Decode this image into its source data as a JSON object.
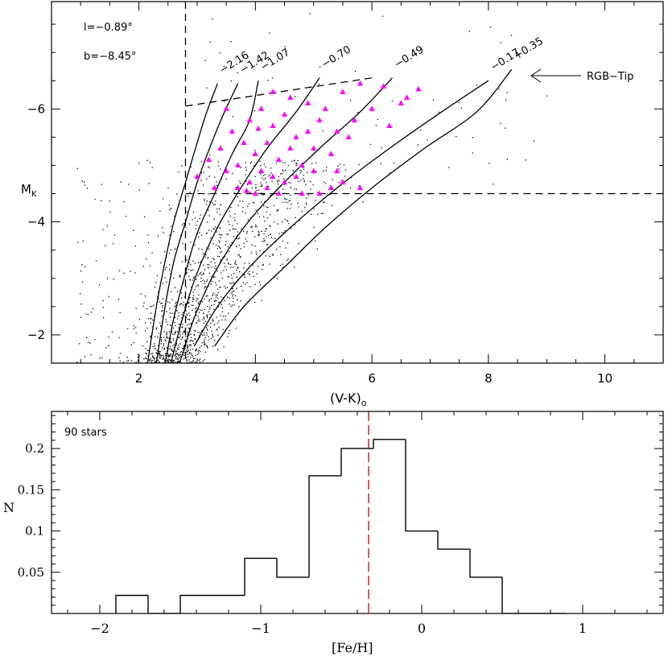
{
  "chart_data": [
    {
      "type": "scatter",
      "panel": "top",
      "title": "",
      "xlabel": "(V-K)",
      "xlabel_sub": "o",
      "ylabel": "M",
      "ylabel_sub": "K",
      "xlim": [
        0.5,
        11
      ],
      "ylim": [
        -1.5,
        -7.9
      ],
      "y_inverted": true,
      "xticks": [
        2,
        4,
        6,
        8,
        10
      ],
      "xtick_labels": [
        "2",
        "4",
        "6",
        "8",
        "10"
      ],
      "yticks": [
        -2,
        -4,
        -6
      ],
      "ytick_labels": [
        "−2",
        "−4",
        "−6"
      ],
      "annotations": {
        "longitude": "l=−0.89°",
        "latitude": "b=−8.45°",
        "rgb_tip": "RGB−Tip"
      },
      "cuts": {
        "color_cut": 2.8,
        "mag_cut": -4.5,
        "tip_line": [
          [
            2.8,
            -6.05
          ],
          [
            6.0,
            -6.55
          ]
        ]
      },
      "isochrones": [
        {
          "label": "−2.16",
          "points": [
            [
              2.15,
              -1.5
            ],
            [
              2.3,
              -2.5
            ],
            [
              2.45,
              -3.3
            ],
            [
              2.6,
              -4.0
            ],
            [
              2.8,
              -4.7
            ],
            [
              3.0,
              -5.4
            ],
            [
              3.15,
              -5.9
            ],
            [
              3.35,
              -6.45
            ]
          ]
        },
        {
          "label": "−1.42",
          "points": [
            [
              2.3,
              -1.5
            ],
            [
              2.45,
              -2.5
            ],
            [
              2.6,
              -3.3
            ],
            [
              2.8,
              -4.0
            ],
            [
              3.0,
              -4.7
            ],
            [
              3.25,
              -5.4
            ],
            [
              3.45,
              -5.9
            ],
            [
              3.7,
              -6.45
            ]
          ]
        },
        {
          "label": "−1.07",
          "points": [
            [
              2.45,
              -1.5
            ],
            [
              2.6,
              -2.3
            ],
            [
              2.8,
              -3.1
            ],
            [
              3.0,
              -3.8
            ],
            [
              3.3,
              -4.5
            ],
            [
              3.6,
              -5.2
            ],
            [
              3.9,
              -5.8
            ],
            [
              4.05,
              -6.5
            ]
          ]
        },
        {
          "label": "−0.70",
          "points": [
            [
              2.55,
              -1.5
            ],
            [
              2.75,
              -2.3
            ],
            [
              3.0,
              -3.1
            ],
            [
              3.35,
              -3.9
            ],
            [
              3.75,
              -4.6
            ],
            [
              4.2,
              -5.3
            ],
            [
              4.7,
              -5.95
            ],
            [
              5.1,
              -6.55
            ]
          ]
        },
        {
          "label": "−0.49",
          "points": [
            [
              2.7,
              -1.5
            ],
            [
              2.95,
              -2.3
            ],
            [
              3.3,
              -3.1
            ],
            [
              3.8,
              -3.9
            ],
            [
              4.4,
              -4.6
            ],
            [
              5.1,
              -5.3
            ],
            [
              5.8,
              -5.95
            ],
            [
              6.35,
              -6.55
            ]
          ]
        },
        {
          "label": "−0.17",
          "points": [
            [
              2.95,
              -1.8
            ],
            [
              3.35,
              -2.5
            ],
            [
              3.9,
              -3.2
            ],
            [
              4.6,
              -3.9
            ],
            [
              5.4,
              -4.6
            ],
            [
              6.3,
              -5.3
            ],
            [
              7.2,
              -5.95
            ],
            [
              8.0,
              -6.5
            ]
          ]
        },
        {
          "label": "+0.35",
          "points": [
            [
              3.3,
              -1.8
            ],
            [
              3.8,
              -2.5
            ],
            [
              4.5,
              -3.2
            ],
            [
              5.2,
              -3.9
            ],
            [
              6.0,
              -4.6
            ],
            [
              6.9,
              -5.3
            ],
            [
              7.8,
              -5.95
            ],
            [
              8.4,
              -6.7
            ]
          ]
        }
      ],
      "rgb_stars": [
        [
          3.0,
          -4.8
        ],
        [
          3.2,
          -5.1
        ],
        [
          3.3,
          -4.6
        ],
        [
          3.4,
          -5.3
        ],
        [
          3.5,
          -4.9
        ],
        [
          3.6,
          -5.6
        ],
        [
          3.7,
          -4.6
        ],
        [
          3.7,
          -5.0
        ],
        [
          3.8,
          -5.4
        ],
        [
          3.9,
          -5.8
        ],
        [
          3.9,
          -4.7
        ],
        [
          4.0,
          -5.2
        ],
        [
          4.0,
          -4.5
        ],
        [
          4.1,
          -6.0
        ],
        [
          4.1,
          -4.9
        ],
        [
          4.2,
          -5.4
        ],
        [
          4.2,
          -4.6
        ],
        [
          4.3,
          -5.7
        ],
        [
          4.3,
          -6.3
        ],
        [
          4.3,
          -4.8
        ],
        [
          4.4,
          -5.1
        ],
        [
          4.4,
          -4.5
        ],
        [
          4.5,
          -5.9
        ],
        [
          4.5,
          -4.7
        ],
        [
          4.6,
          -5.3
        ],
        [
          4.6,
          -6.2
        ],
        [
          4.7,
          -4.8
        ],
        [
          4.7,
          -5.5
        ],
        [
          4.8,
          -5.0
        ],
        [
          4.8,
          -4.5
        ],
        [
          4.9,
          -5.6
        ],
        [
          4.9,
          -6.1
        ],
        [
          5.0,
          -4.9
        ],
        [
          5.0,
          -5.3
        ],
        [
          5.1,
          -4.5
        ],
        [
          5.1,
          -5.8
        ],
        [
          5.2,
          -6.0
        ],
        [
          5.3,
          -4.6
        ],
        [
          5.3,
          -5.2
        ],
        [
          5.4,
          -5.6
        ],
        [
          5.4,
          -4.9
        ],
        [
          5.5,
          -6.3
        ],
        [
          5.5,
          -4.7
        ],
        [
          5.6,
          -5.5
        ],
        [
          5.7,
          -5.8
        ],
        [
          5.8,
          -4.6
        ],
        [
          5.8,
          -6.45
        ],
        [
          6.0,
          -6.0
        ],
        [
          6.2,
          -6.4
        ],
        [
          6.3,
          -5.7
        ],
        [
          6.5,
          -6.1
        ],
        [
          6.6,
          -6.2
        ],
        [
          6.8,
          -6.35
        ],
        [
          3.5,
          -6.0
        ],
        [
          3.85,
          -4.55
        ],
        [
          4.05,
          -5.65
        ]
      ],
      "field_stars_count": 1400
    },
    {
      "type": "bar",
      "panel": "bottom",
      "title": "",
      "xlabel": "[Fe/H]",
      "ylabel": "N",
      "legend": "90 stars",
      "xlim": [
        -2.3,
        1.5
      ],
      "ylim": [
        0,
        0.245
      ],
      "xticks": [
        -2,
        -1,
        0,
        1
      ],
      "xtick_labels": [
        "−2",
        "−1",
        "0",
        "1"
      ],
      "yticks": [
        0.05,
        0.1,
        0.15,
        0.2
      ],
      "ytick_labels": [
        "0.05",
        "0.1",
        "0.15",
        "0.2"
      ],
      "bin_edges": [
        -1.9,
        -1.7,
        -1.5,
        -1.3,
        -1.1,
        -0.9,
        -0.7,
        -0.5,
        -0.3,
        -0.1,
        0.1,
        0.3,
        0.5,
        0.7,
        0.9
      ],
      "values": [
        0.022,
        0.0,
        0.022,
        0.022,
        0.067,
        0.044,
        0.167,
        0.2,
        0.211,
        0.1,
        0.078,
        0.044,
        0.0,
        0.0
      ],
      "mean_feh": -0.33,
      "mean_line_color": "#d01010"
    }
  ],
  "colors": {
    "rgb_star": "#ff00ff",
    "axis": "#000000",
    "background": "#ffffff"
  }
}
